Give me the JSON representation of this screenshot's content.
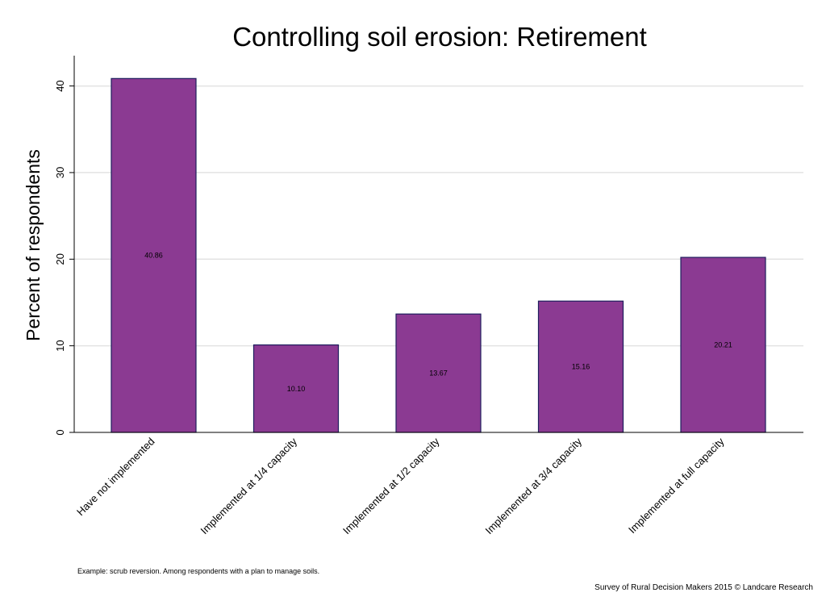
{
  "chart_data": {
    "type": "bar",
    "title": "Controlling soil erosion: Retirement",
    "ylabel": "Percent of respondents",
    "xlabel": "",
    "categories": [
      "Have not implemented",
      "Implemented at 1/4 capacity",
      "Implemented at 1/2 capacity",
      "Implemented at 3/4 capacity",
      "Implemented at full capacity"
    ],
    "values": [
      40.86,
      10.1,
      13.67,
      15.16,
      20.21
    ],
    "data_labels": [
      "40.86",
      "10.10",
      "13.67",
      "15.16",
      "20.21"
    ],
    "yticks": [
      0,
      10,
      20,
      30,
      40
    ],
    "ylim": [
      0,
      43.5
    ],
    "grid": true,
    "legend": "none",
    "bar_color": "#8b3a92",
    "bar_edge_color": "#1f1e5e",
    "grid_color": "#e3e3e3"
  },
  "footer": {
    "note": "Example: scrub reversion. Among respondents with a plan to manage soils.",
    "credit": "Survey of Rural Decision Makers 2015 © Landcare Research"
  }
}
